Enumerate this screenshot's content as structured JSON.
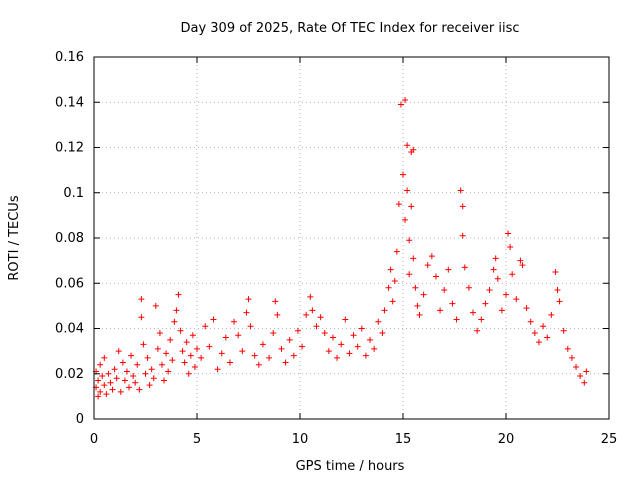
{
  "chart_data": {
    "type": "scatter",
    "title": "Day 309 of 2025, Rate Of TEC Index for receiver iisc",
    "xlabel": "GPS time / hours",
    "ylabel": "ROTI / TECUs",
    "xlim": [
      0,
      25
    ],
    "ylim": [
      0,
      0.16
    ],
    "x_ticks": [
      0,
      5,
      10,
      15,
      20,
      25
    ],
    "y_ticks": [
      0,
      0.02,
      0.04,
      0.06,
      0.08,
      0.1,
      0.12,
      0.14,
      0.16
    ],
    "x_tick_labels": [
      "0",
      "5",
      "10",
      "15",
      "20",
      "25"
    ],
    "y_tick_labels": [
      "0",
      "0.02",
      "0.04",
      "0.06",
      "0.08",
      "0.1",
      "0.12",
      "0.14",
      "0.16"
    ],
    "grid": true,
    "marker": "+",
    "color": "#ff0000",
    "series": [
      {
        "name": "ROTI",
        "points": [
          [
            0.1,
            0.014
          ],
          [
            0.1,
            0.021
          ],
          [
            0.2,
            0.01
          ],
          [
            0.2,
            0.017
          ],
          [
            0.3,
            0.024
          ],
          [
            0.3,
            0.012
          ],
          [
            0.4,
            0.019
          ],
          [
            0.5,
            0.015
          ],
          [
            0.5,
            0.027
          ],
          [
            0.6,
            0.011
          ],
          [
            0.7,
            0.02
          ],
          [
            0.8,
            0.016
          ],
          [
            0.9,
            0.013
          ],
          [
            1.0,
            0.022
          ],
          [
            1.1,
            0.018
          ],
          [
            1.2,
            0.03
          ],
          [
            1.3,
            0.012
          ],
          [
            1.4,
            0.025
          ],
          [
            1.5,
            0.017
          ],
          [
            1.6,
            0.021
          ],
          [
            1.7,
            0.014
          ],
          [
            1.8,
            0.028
          ],
          [
            1.9,
            0.019
          ],
          [
            2.0,
            0.016
          ],
          [
            2.1,
            0.024
          ],
          [
            2.2,
            0.013
          ],
          [
            2.3,
            0.053
          ],
          [
            2.3,
            0.045
          ],
          [
            2.4,
            0.033
          ],
          [
            2.5,
            0.02
          ],
          [
            2.6,
            0.027
          ],
          [
            2.7,
            0.015
          ],
          [
            2.8,
            0.022
          ],
          [
            2.9,
            0.018
          ],
          [
            3.0,
            0.05
          ],
          [
            3.1,
            0.031
          ],
          [
            3.2,
            0.038
          ],
          [
            3.3,
            0.024
          ],
          [
            3.4,
            0.017
          ],
          [
            3.5,
            0.029
          ],
          [
            3.6,
            0.021
          ],
          [
            3.7,
            0.035
          ],
          [
            3.8,
            0.026
          ],
          [
            3.9,
            0.043
          ],
          [
            4.0,
            0.048
          ],
          [
            4.1,
            0.055
          ],
          [
            4.2,
            0.039
          ],
          [
            4.3,
            0.03
          ],
          [
            4.4,
            0.025
          ],
          [
            4.5,
            0.034
          ],
          [
            4.6,
            0.02
          ],
          [
            4.7,
            0.028
          ],
          [
            4.8,
            0.037
          ],
          [
            4.9,
            0.023
          ],
          [
            5.0,
            0.031
          ],
          [
            5.2,
            0.027
          ],
          [
            5.4,
            0.041
          ],
          [
            5.6,
            0.032
          ],
          [
            5.8,
            0.044
          ],
          [
            6.0,
            0.022
          ],
          [
            6.2,
            0.029
          ],
          [
            6.4,
            0.036
          ],
          [
            6.6,
            0.025
          ],
          [
            6.8,
            0.043
          ],
          [
            7.0,
            0.037
          ],
          [
            7.2,
            0.03
          ],
          [
            7.4,
            0.047
          ],
          [
            7.5,
            0.053
          ],
          [
            7.6,
            0.041
          ],
          [
            7.8,
            0.028
          ],
          [
            8.0,
            0.024
          ],
          [
            8.2,
            0.033
          ],
          [
            8.5,
            0.027
          ],
          [
            8.7,
            0.038
          ],
          [
            8.8,
            0.052
          ],
          [
            8.9,
            0.046
          ],
          [
            9.1,
            0.031
          ],
          [
            9.3,
            0.025
          ],
          [
            9.5,
            0.035
          ],
          [
            9.7,
            0.028
          ],
          [
            9.9,
            0.039
          ],
          [
            10.1,
            0.032
          ],
          [
            10.3,
            0.046
          ],
          [
            10.5,
            0.054
          ],
          [
            10.6,
            0.048
          ],
          [
            10.8,
            0.041
          ],
          [
            11.0,
            0.045
          ],
          [
            11.2,
            0.038
          ],
          [
            11.4,
            0.03
          ],
          [
            11.6,
            0.036
          ],
          [
            11.8,
            0.027
          ],
          [
            12.0,
            0.033
          ],
          [
            12.2,
            0.044
          ],
          [
            12.4,
            0.029
          ],
          [
            12.6,
            0.037
          ],
          [
            12.8,
            0.032
          ],
          [
            13.0,
            0.04
          ],
          [
            13.2,
            0.028
          ],
          [
            13.4,
            0.035
          ],
          [
            13.6,
            0.031
          ],
          [
            13.8,
            0.043
          ],
          [
            14.0,
            0.038
          ],
          [
            14.1,
            0.048
          ],
          [
            14.3,
            0.058
          ],
          [
            14.4,
            0.066
          ],
          [
            14.5,
            0.052
          ],
          [
            14.6,
            0.061
          ],
          [
            14.7,
            0.074
          ],
          [
            14.8,
            0.095
          ],
          [
            14.9,
            0.139
          ],
          [
            15.0,
            0.108
          ],
          [
            15.1,
            0.141
          ],
          [
            15.1,
            0.088
          ],
          [
            15.2,
            0.121
          ],
          [
            15.2,
            0.101
          ],
          [
            15.3,
            0.079
          ],
          [
            15.3,
            0.064
          ],
          [
            15.4,
            0.118
          ],
          [
            15.4,
            0.094
          ],
          [
            15.5,
            0.119
          ],
          [
            15.5,
            0.071
          ],
          [
            15.6,
            0.058
          ],
          [
            15.7,
            0.05
          ],
          [
            15.8,
            0.046
          ],
          [
            16.0,
            0.055
          ],
          [
            16.2,
            0.068
          ],
          [
            16.4,
            0.072
          ],
          [
            16.6,
            0.063
          ],
          [
            16.8,
            0.048
          ],
          [
            17.0,
            0.057
          ],
          [
            17.2,
            0.066
          ],
          [
            17.4,
            0.051
          ],
          [
            17.6,
            0.044
          ],
          [
            17.8,
            0.101
          ],
          [
            17.9,
            0.094
          ],
          [
            17.9,
            0.081
          ],
          [
            18.0,
            0.067
          ],
          [
            18.2,
            0.058
          ],
          [
            18.4,
            0.047
          ],
          [
            18.6,
            0.039
          ],
          [
            18.8,
            0.044
          ],
          [
            19.0,
            0.051
          ],
          [
            19.2,
            0.057
          ],
          [
            19.4,
            0.066
          ],
          [
            19.5,
            0.071
          ],
          [
            19.6,
            0.062
          ],
          [
            19.8,
            0.048
          ],
          [
            20.0,
            0.055
          ],
          [
            20.1,
            0.082
          ],
          [
            20.2,
            0.076
          ],
          [
            20.3,
            0.064
          ],
          [
            20.5,
            0.053
          ],
          [
            20.7,
            0.07
          ],
          [
            20.8,
            0.068
          ],
          [
            21.0,
            0.049
          ],
          [
            21.2,
            0.043
          ],
          [
            21.4,
            0.038
          ],
          [
            21.6,
            0.034
          ],
          [
            21.8,
            0.041
          ],
          [
            22.0,
            0.036
          ],
          [
            22.2,
            0.046
          ],
          [
            22.4,
            0.065
          ],
          [
            22.5,
            0.057
          ],
          [
            22.6,
            0.052
          ],
          [
            22.8,
            0.039
          ],
          [
            23.0,
            0.031
          ],
          [
            23.2,
            0.027
          ],
          [
            23.4,
            0.023
          ],
          [
            23.6,
            0.019
          ],
          [
            23.8,
            0.016
          ],
          [
            23.9,
            0.021
          ]
        ]
      }
    ]
  }
}
